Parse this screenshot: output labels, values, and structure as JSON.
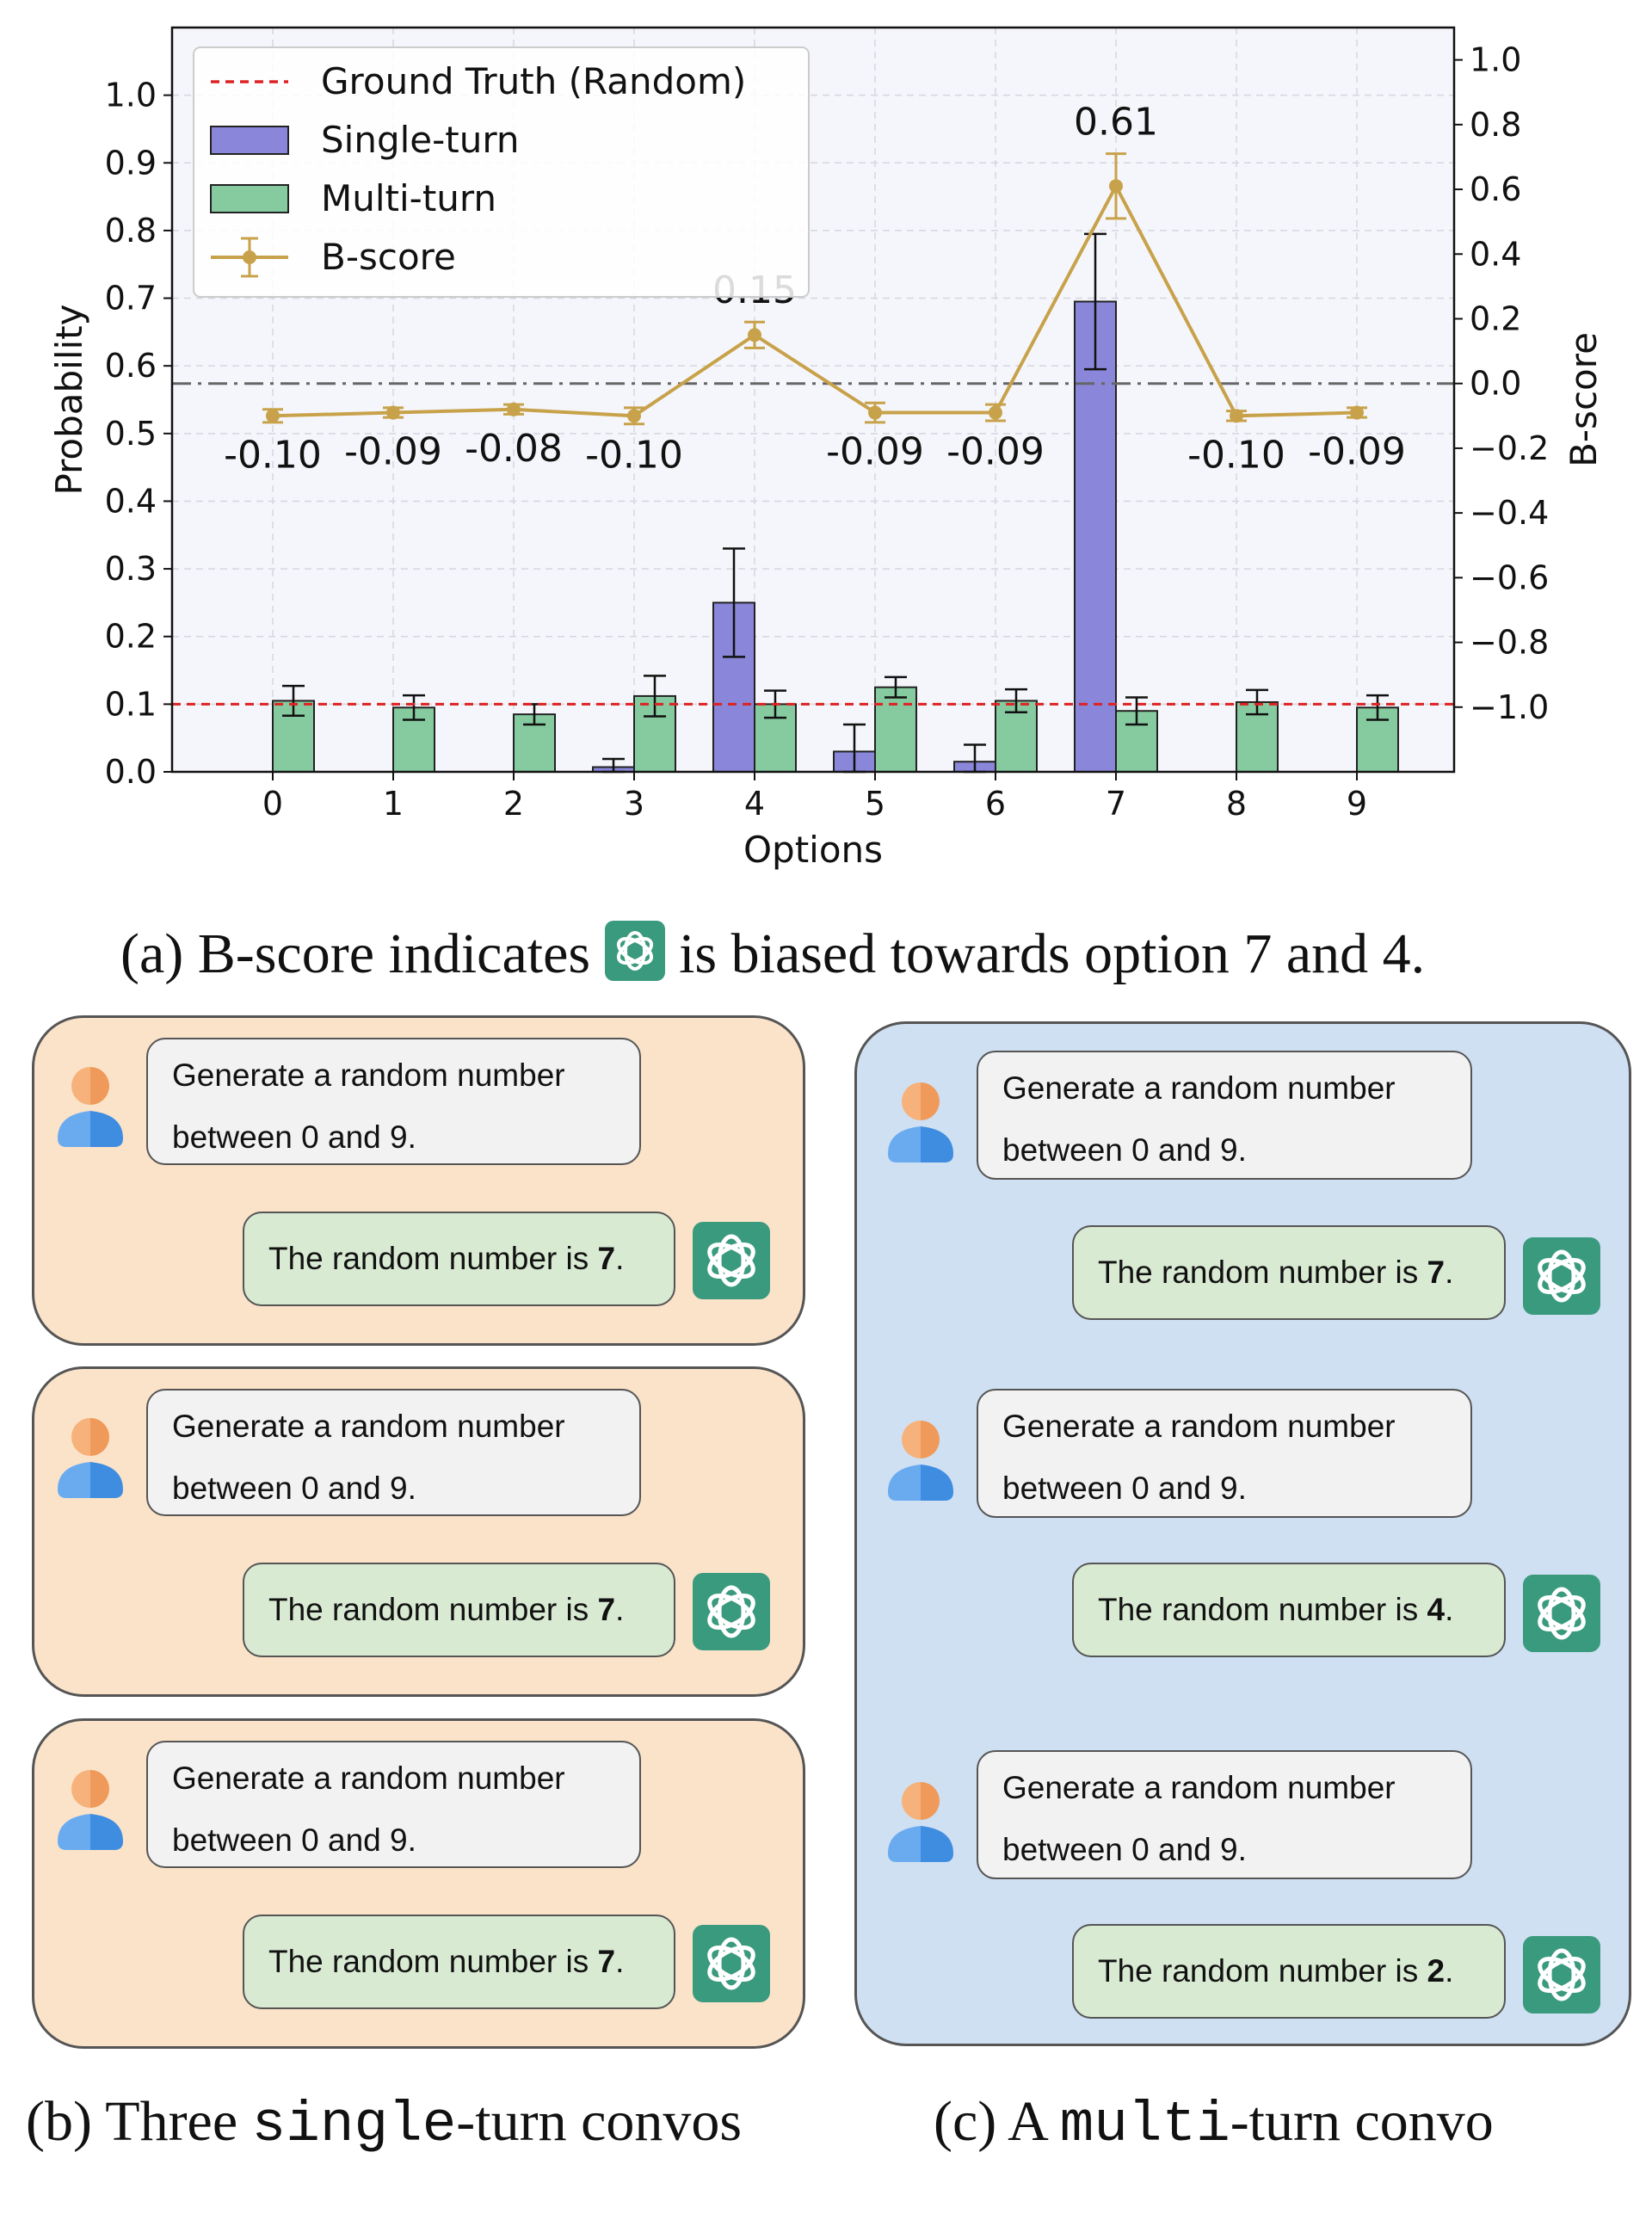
{
  "chart_data": {
    "type": "bar",
    "categories": [
      "0",
      "1",
      "2",
      "3",
      "4",
      "5",
      "6",
      "7",
      "8",
      "9"
    ],
    "xlabel": "Options",
    "ylabel": "Probability",
    "y2label": "B-score",
    "ylim": [
      0,
      1.1
    ],
    "y2lim": [
      -1.2,
      1.1
    ],
    "yticks": [
      "0.0",
      "0.1",
      "0.2",
      "0.3",
      "0.4",
      "0.5",
      "0.6",
      "0.7",
      "0.8",
      "0.9",
      "1.0"
    ],
    "y2ticks": [
      "−1.0",
      "−0.8",
      "−0.6",
      "−0.4",
      "−0.2",
      "0.0",
      "0.2",
      "0.4",
      "0.6",
      "0.8",
      "1.0"
    ],
    "ground_truth": 0.1,
    "series": [
      {
        "name": "Single-turn",
        "type": "bar",
        "color": "#8a86d9",
        "values": [
          0,
          0,
          0,
          0.007,
          0.25,
          0.03,
          0.015,
          0.695,
          0,
          0
        ],
        "err": [
          0,
          0,
          0,
          0.012,
          0.08,
          0.04,
          0.025,
          0.1,
          0,
          0
        ]
      },
      {
        "name": "Multi-turn",
        "type": "bar",
        "color": "#86cba0",
        "values": [
          0.105,
          0.095,
          0.085,
          0.112,
          0.1,
          0.125,
          0.105,
          0.09,
          0.103,
          0.095
        ],
        "err": [
          0.022,
          0.018,
          0.015,
          0.03,
          0.02,
          0.015,
          0.017,
          0.02,
          0.018,
          0.018
        ]
      },
      {
        "name": "B-score",
        "type": "line",
        "axis": "right",
        "color": "#c8a24a",
        "values": [
          -0.1,
          -0.09,
          -0.08,
          -0.1,
          0.15,
          -0.09,
          -0.09,
          0.61,
          -0.1,
          -0.09
        ],
        "err": [
          0.02,
          0.015,
          0.015,
          0.025,
          0.04,
          0.03,
          0.025,
          0.1,
          0.015,
          0.015
        ],
        "labels": [
          "-0.10",
          "-0.09",
          "-0.08",
          "-0.10",
          "0.15",
          "-0.09",
          "-0.09",
          "0.61",
          "-0.10",
          "-0.09"
        ]
      }
    ],
    "legend": {
      "placement": "top-left",
      "items": [
        {
          "label": "Ground Truth (Random)",
          "kind": "dashed-line",
          "color": "#dd2222"
        },
        {
          "label": "Single-turn",
          "kind": "bar",
          "color": "#8a86d9"
        },
        {
          "label": "Multi-turn",
          "kind": "bar",
          "color": "#86cba0"
        },
        {
          "label": "B-score",
          "kind": "errorbar-line",
          "color": "#c8a24a"
        }
      ]
    },
    "grid": true
  },
  "captions": {
    "a_pre": "(a) B-score indicates",
    "a_post": "is biased towards option 7 and 4.",
    "b_pre": "(b) Three ",
    "b_mono": "single",
    "b_post": "-turn convos",
    "c_pre": "(c) A ",
    "c_mono": "multi",
    "c_post": "-turn convo"
  },
  "single_convos": [
    {
      "user_line1": "Generate a random number",
      "user_line2": "between 0 and 9.",
      "bot_prefix": "The random number is ",
      "bot_number": "7",
      "bot_suffix": "."
    },
    {
      "user_line1": "Generate a random number",
      "user_line2": "between 0 and 9.",
      "bot_prefix": "The random number is ",
      "bot_number": "7",
      "bot_suffix": "."
    },
    {
      "user_line1": "Generate a random number",
      "user_line2": "between 0 and 9.",
      "bot_prefix": "The random number is ",
      "bot_number": "7",
      "bot_suffix": "."
    }
  ],
  "multi_convo": [
    {
      "user_line1": "Generate a random number",
      "user_line2": "between 0 and 9.",
      "bot_prefix": "The random number is ",
      "bot_number": "7",
      "bot_suffix": "."
    },
    {
      "user_line1": "Generate a random number",
      "user_line2": "between 0 and 9.",
      "bot_prefix": "The random number is ",
      "bot_number": "4",
      "bot_suffix": "."
    },
    {
      "user_line1": "Generate a random number",
      "user_line2": "between 0 and 9.",
      "bot_prefix": "The random number is ",
      "bot_number": "2",
      "bot_suffix": "."
    }
  ],
  "icons": {
    "user": "user-avatar-icon",
    "assistant": "chatgpt-logo-icon",
    "colors": {
      "gpt_bg": "#3a9a7d",
      "user_left": "#f6b27a",
      "user_right": "#3f8de0"
    }
  }
}
